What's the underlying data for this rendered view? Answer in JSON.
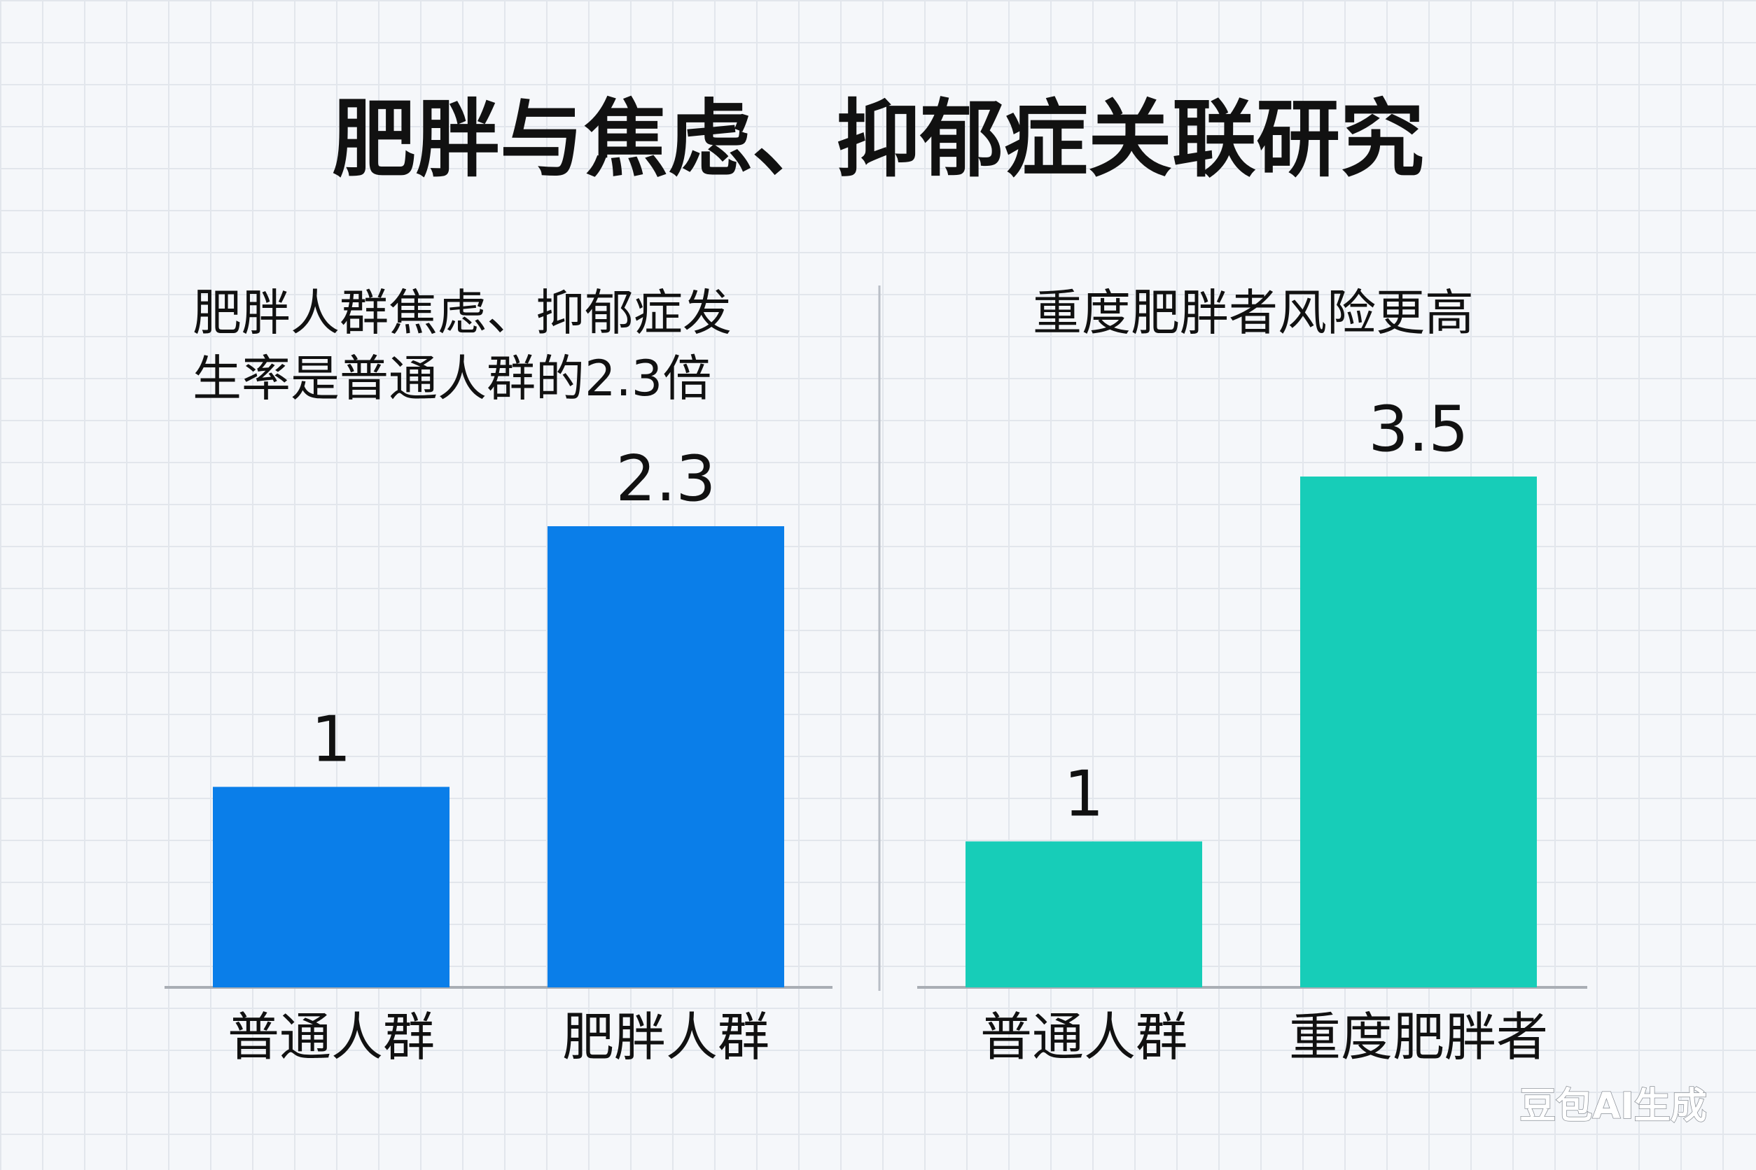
{
  "title": "肥胖与焦虑、抑郁症关联研究",
  "watermark": "豆包AI生成",
  "chart_data": [
    {
      "type": "bar",
      "title": "肥胖人群焦虑、抑郁症发生率是普通人群的2.3倍",
      "categories": [
        "普通人群",
        "肥胖人群"
      ],
      "values": [
        1,
        2.3
      ],
      "color": "#0a7ee9"
    },
    {
      "type": "bar",
      "title": "重度肥胖者风险更高",
      "categories": [
        "普通人群",
        "重度肥胖者"
      ],
      "values": [
        1,
        3.5
      ],
      "color": "#17cdb8"
    }
  ]
}
